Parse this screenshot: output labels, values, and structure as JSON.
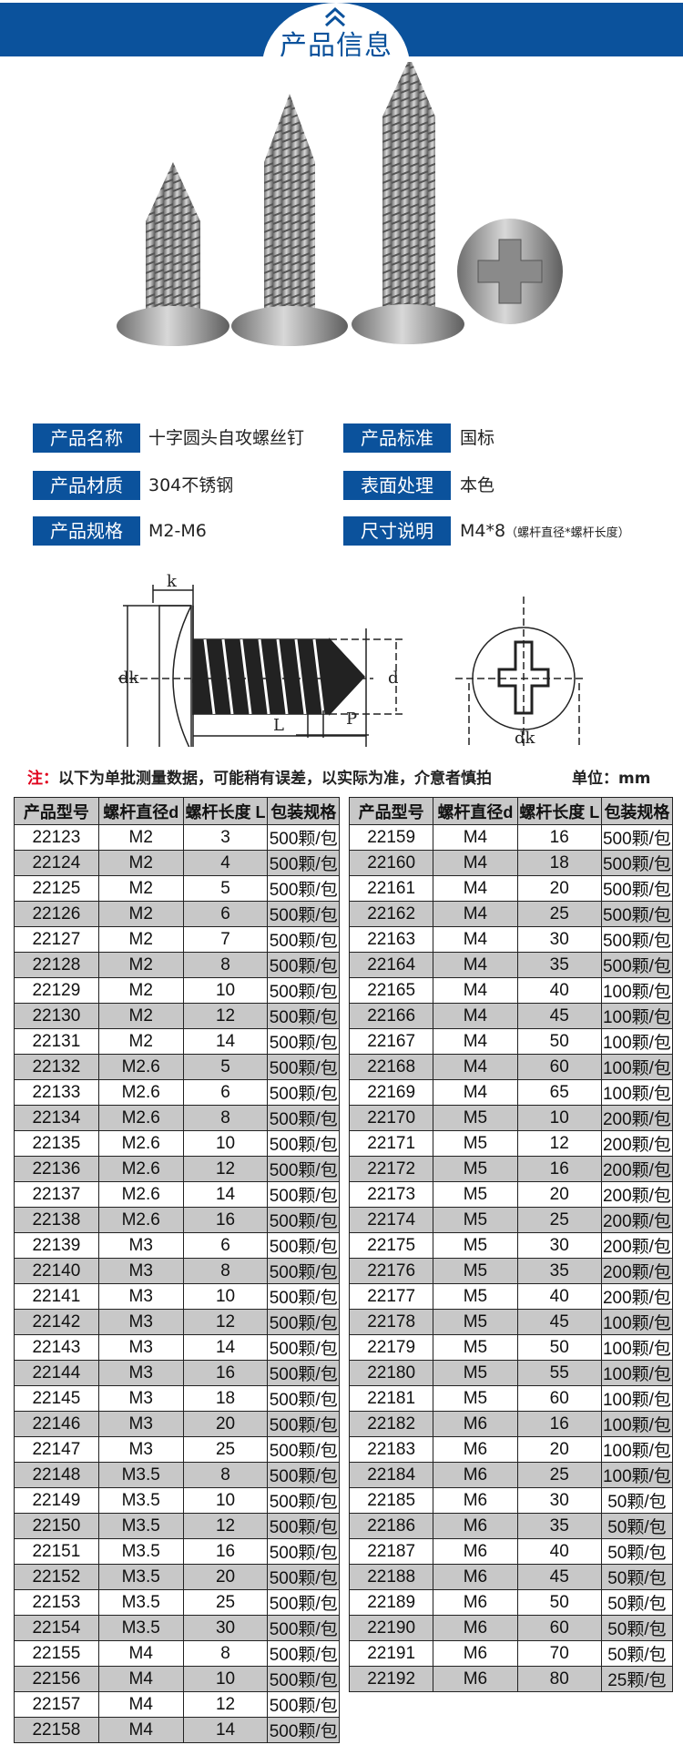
{
  "header": {
    "title": "产品信息",
    "icon": "double-chevron-up-icon",
    "color": "#0b529c"
  },
  "info": [
    {
      "label": "产品名称",
      "value": "十字圆头自攻螺丝钉"
    },
    {
      "label": "产品标准",
      "value": "国标"
    },
    {
      "label": "产品材质",
      "value": "304不锈钢"
    },
    {
      "label": "表面处理",
      "value": "本色"
    },
    {
      "label": "产品规格",
      "value": "M2-M6"
    },
    {
      "label": "尺寸说明",
      "value": "M4*8",
      "note": "（螺杆直径*螺杆长度）"
    }
  ],
  "diagram": {
    "k": "k",
    "dk": "dk",
    "d": "d",
    "p": "P",
    "l": "L"
  },
  "note": {
    "prefix": "注：",
    "text": "以下为单批测量数据，可能稍有误差，以实际为准，介意者慎拍",
    "unit": "单位：mm"
  },
  "table": {
    "headers": [
      "产品型号",
      "螺杆直径d",
      "螺杆长度 L",
      "包装规格"
    ],
    "left": [
      [
        "22123",
        "M2",
        "3",
        "500颗/包"
      ],
      [
        "22124",
        "M2",
        "4",
        "500颗/包"
      ],
      [
        "22125",
        "M2",
        "5",
        "500颗/包"
      ],
      [
        "22126",
        "M2",
        "6",
        "500颗/包"
      ],
      [
        "22127",
        "M2",
        "7",
        "500颗/包"
      ],
      [
        "22128",
        "M2",
        "8",
        "500颗/包"
      ],
      [
        "22129",
        "M2",
        "10",
        "500颗/包"
      ],
      [
        "22130",
        "M2",
        "12",
        "500颗/包"
      ],
      [
        "22131",
        "M2",
        "14",
        "500颗/包"
      ],
      [
        "22132",
        "M2.6",
        "5",
        "500颗/包"
      ],
      [
        "22133",
        "M2.6",
        "6",
        "500颗/包"
      ],
      [
        "22134",
        "M2.6",
        "8",
        "500颗/包"
      ],
      [
        "22135",
        "M2.6",
        "10",
        "500颗/包"
      ],
      [
        "22136",
        "M2.6",
        "12",
        "500颗/包"
      ],
      [
        "22137",
        "M2.6",
        "14",
        "500颗/包"
      ],
      [
        "22138",
        "M2.6",
        "16",
        "500颗/包"
      ],
      [
        "22139",
        "M3",
        "6",
        "500颗/包"
      ],
      [
        "22140",
        "M3",
        "8",
        "500颗/包"
      ],
      [
        "22141",
        "M3",
        "10",
        "500颗/包"
      ],
      [
        "22142",
        "M3",
        "12",
        "500颗/包"
      ],
      [
        "22143",
        "M3",
        "14",
        "500颗/包"
      ],
      [
        "22144",
        "M3",
        "16",
        "500颗/包"
      ],
      [
        "22145",
        "M3",
        "18",
        "500颗/包"
      ],
      [
        "22146",
        "M3",
        "20",
        "500颗/包"
      ],
      [
        "22147",
        "M3",
        "25",
        "500颗/包"
      ],
      [
        "22148",
        "M3.5",
        "8",
        "500颗/包"
      ],
      [
        "22149",
        "M3.5",
        "10",
        "500颗/包"
      ],
      [
        "22150",
        "M3.5",
        "12",
        "500颗/包"
      ],
      [
        "22151",
        "M3.5",
        "16",
        "500颗/包"
      ],
      [
        "22152",
        "M3.5",
        "20",
        "500颗/包"
      ],
      [
        "22153",
        "M3.5",
        "25",
        "500颗/包"
      ],
      [
        "22154",
        "M3.5",
        "30",
        "500颗/包"
      ],
      [
        "22155",
        "M4",
        "8",
        "500颗/包"
      ],
      [
        "22156",
        "M4",
        "10",
        "500颗/包"
      ],
      [
        "22157",
        "M4",
        "12",
        "500颗/包"
      ],
      [
        "22158",
        "M4",
        "14",
        "500颗/包"
      ]
    ],
    "right": [
      [
        "22159",
        "M4",
        "16",
        "500颗/包"
      ],
      [
        "22160",
        "M4",
        "18",
        "500颗/包"
      ],
      [
        "22161",
        "M4",
        "20",
        "500颗/包"
      ],
      [
        "22162",
        "M4",
        "25",
        "500颗/包"
      ],
      [
        "22163",
        "M4",
        "30",
        "500颗/包"
      ],
      [
        "22164",
        "M4",
        "35",
        "500颗/包"
      ],
      [
        "22165",
        "M4",
        "40",
        "100颗/包"
      ],
      [
        "22166",
        "M4",
        "45",
        "100颗/包"
      ],
      [
        "22167",
        "M4",
        "50",
        "100颗/包"
      ],
      [
        "22168",
        "M4",
        "60",
        "100颗/包"
      ],
      [
        "22169",
        "M4",
        "65",
        "100颗/包"
      ],
      [
        "22170",
        "M5",
        "10",
        "200颗/包"
      ],
      [
        "22171",
        "M5",
        "12",
        "200颗/包"
      ],
      [
        "22172",
        "M5",
        "16",
        "200颗/包"
      ],
      [
        "22173",
        "M5",
        "20",
        "200颗/包"
      ],
      [
        "22174",
        "M5",
        "25",
        "200颗/包"
      ],
      [
        "22175",
        "M5",
        "30",
        "200颗/包"
      ],
      [
        "22176",
        "M5",
        "35",
        "200颗/包"
      ],
      [
        "22177",
        "M5",
        "40",
        "200颗/包"
      ],
      [
        "22178",
        "M5",
        "45",
        "100颗/包"
      ],
      [
        "22179",
        "M5",
        "50",
        "100颗/包"
      ],
      [
        "22180",
        "M5",
        "55",
        "100颗/包"
      ],
      [
        "22181",
        "M5",
        "60",
        "100颗/包"
      ],
      [
        "22182",
        "M6",
        "16",
        "100颗/包"
      ],
      [
        "22183",
        "M6",
        "20",
        "100颗/包"
      ],
      [
        "22184",
        "M6",
        "25",
        "100颗/包"
      ],
      [
        "22185",
        "M6",
        "30",
        "50颗/包"
      ],
      [
        "22186",
        "M6",
        "35",
        "50颗/包"
      ],
      [
        "22187",
        "M6",
        "40",
        "50颗/包"
      ],
      [
        "22188",
        "M6",
        "45",
        "50颗/包"
      ],
      [
        "22189",
        "M6",
        "50",
        "50颗/包"
      ],
      [
        "22190",
        "M6",
        "60",
        "50颗/包"
      ],
      [
        "22191",
        "M6",
        "70",
        "50颗/包"
      ],
      [
        "22192",
        "M6",
        "80",
        "25颗/包"
      ]
    ]
  }
}
